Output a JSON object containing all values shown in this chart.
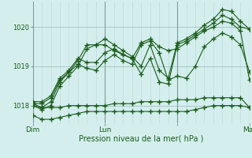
{
  "title": "",
  "xlabel": "Pression niveau de la mer( hPa )",
  "bg_color": "#d4eeed",
  "line_color": "#1a5c1a",
  "grid_minor_color": "#b8d8d8",
  "grid_major_color": "#9ababa",
  "ylim": [
    1017.55,
    1020.65
  ],
  "yticks": [
    1018,
    1019,
    1020
  ],
  "xlim": [
    0,
    72
  ],
  "xtick_positions": [
    0,
    24,
    48,
    72
  ],
  "xtick_labels": [
    "Dim",
    "Lun",
    "",
    "Mar"
  ],
  "series": [
    {
      "x": [
        0,
        3,
        6,
        9,
        12,
        15,
        18,
        21,
        24,
        27,
        30,
        33,
        36,
        39,
        42,
        45,
        48,
        51,
        54,
        57,
        60,
        63,
        66,
        69,
        72
      ],
      "y": [
        1018.0,
        1017.95,
        1017.95,
        1017.95,
        1018.0,
        1018.0,
        1018.0,
        1018.0,
        1018.0,
        1018.05,
        1018.05,
        1018.05,
        1018.1,
        1018.1,
        1018.1,
        1018.1,
        1018.15,
        1018.15,
        1018.15,
        1018.2,
        1018.2,
        1018.2,
        1018.2,
        1018.2,
        1017.95
      ]
    },
    {
      "x": [
        0,
        3,
        6,
        9,
        12,
        15,
        18,
        21,
        24,
        27,
        30,
        33,
        36,
        39,
        42,
        45,
        48,
        51,
        54,
        57,
        60,
        63,
        66,
        69,
        72
      ],
      "y": [
        1017.75,
        1017.65,
        1017.65,
        1017.7,
        1017.75,
        1017.8,
        1017.85,
        1017.85,
        1017.85,
        1017.85,
        1017.85,
        1017.85,
        1017.85,
        1017.85,
        1017.85,
        1017.85,
        1017.85,
        1017.85,
        1017.9,
        1017.95,
        1018.0,
        1018.0,
        1018.0,
        1018.0,
        1017.95
      ]
    },
    {
      "x": [
        0,
        3,
        6,
        9,
        12,
        15,
        18,
        21,
        24,
        27,
        30,
        33,
        36,
        39,
        42,
        45,
        48,
        51,
        54,
        57,
        60,
        63,
        66,
        69,
        72
      ],
      "y": [
        1018.05,
        1018.05,
        1018.2,
        1018.65,
        1018.85,
        1019.05,
        1018.95,
        1018.9,
        1019.15,
        1019.3,
        1019.15,
        1019.05,
        1019.55,
        1019.65,
        1019.35,
        1018.65,
        1018.75,
        1018.7,
        1019.0,
        1019.5,
        1019.7,
        1019.85,
        1019.75,
        1019.55,
        1018.85
      ]
    },
    {
      "x": [
        0,
        3,
        6,
        9,
        12,
        15,
        18,
        21,
        24,
        27,
        30,
        33,
        36,
        39,
        42,
        45,
        48,
        51,
        54,
        57,
        60,
        63,
        66,
        69,
        72
      ],
      "y": [
        1018.1,
        1018.1,
        1018.25,
        1018.7,
        1018.9,
        1019.2,
        1019.1,
        1019.1,
        1019.35,
        1019.45,
        1019.3,
        1019.2,
        1019.6,
        1019.7,
        1019.5,
        1019.4,
        1019.45,
        1019.6,
        1019.75,
        1019.9,
        1020.0,
        1020.15,
        1020.1,
        1019.9,
        1018.65
      ]
    },
    {
      "x": [
        0,
        3,
        6,
        9,
        12,
        15,
        18,
        21,
        24,
        27,
        30,
        33,
        36,
        39,
        42,
        45,
        48,
        51,
        54,
        57,
        60,
        63,
        66,
        69,
        72
      ],
      "y": [
        1018.0,
        1017.9,
        1018.0,
        1018.5,
        1018.75,
        1019.0,
        1019.45,
        1019.55,
        1019.55,
        1019.4,
        1019.3,
        1019.2,
        1018.8,
        1019.2,
        1018.6,
        1018.55,
        1019.55,
        1019.65,
        1019.8,
        1019.95,
        1020.1,
        1020.3,
        1020.2,
        1020.0,
        1019.95
      ]
    },
    {
      "x": [
        0,
        3,
        6,
        9,
        12,
        15,
        18,
        21,
        24,
        27,
        30,
        33,
        36,
        39,
        42,
        45,
        48,
        51,
        54,
        57,
        60,
        63,
        66,
        69,
        72
      ],
      "y": [
        1018.05,
        1017.95,
        1018.1,
        1018.6,
        1018.85,
        1019.15,
        1019.55,
        1019.55,
        1019.7,
        1019.55,
        1019.4,
        1019.25,
        1019.0,
        1019.55,
        1018.9,
        1018.7,
        1019.6,
        1019.7,
        1019.85,
        1020.05,
        1020.2,
        1020.45,
        1020.4,
        1020.15,
        1019.95
      ]
    }
  ],
  "marker": "+",
  "markersize": 4.0,
  "markeredgewidth": 1.0,
  "linewidth": 0.8
}
